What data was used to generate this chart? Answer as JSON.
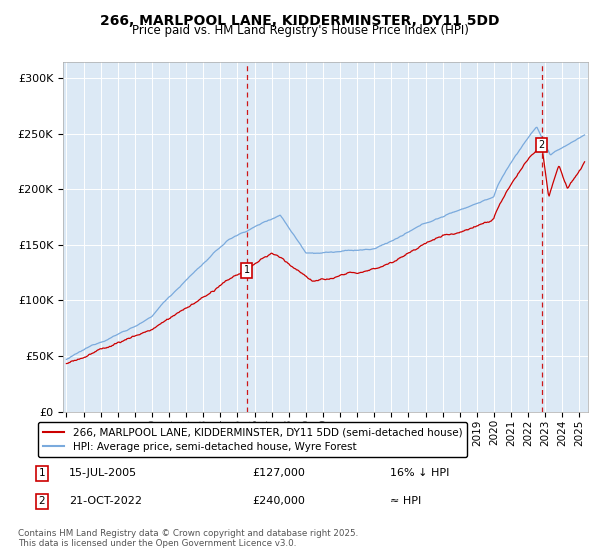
{
  "title1": "266, MARLPOOL LANE, KIDDERMINSTER, DY11 5DD",
  "title2": "Price paid vs. HM Land Registry's House Price Index (HPI)",
  "bg_color": "#dce9f5",
  "ylabel_ticks": [
    "£0",
    "£50K",
    "£100K",
    "£150K",
    "£200K",
    "£250K",
    "£300K"
  ],
  "ytick_vals": [
    0,
    50000,
    100000,
    150000,
    200000,
    250000,
    300000
  ],
  "ylim": [
    0,
    315000
  ],
  "xlim_start": 1994.8,
  "xlim_end": 2025.5,
  "xticks": [
    1995,
    1996,
    1997,
    1998,
    1999,
    2000,
    2001,
    2002,
    2003,
    2004,
    2005,
    2006,
    2007,
    2008,
    2009,
    2010,
    2011,
    2012,
    2013,
    2014,
    2015,
    2016,
    2017,
    2018,
    2019,
    2020,
    2021,
    2022,
    2023,
    2024,
    2025
  ],
  "sale1_x": 2005.54,
  "sale1_y": 127000,
  "sale1_label": "1",
  "sale2_x": 2022.8,
  "sale2_y": 240000,
  "sale2_label": "2",
  "legend_line1": "266, MARLPOOL LANE, KIDDERMINSTER, DY11 5DD (semi-detached house)",
  "legend_line2": "HPI: Average price, semi-detached house, Wyre Forest",
  "footer": "Contains HM Land Registry data © Crown copyright and database right 2025.\nThis data is licensed under the Open Government Licence v3.0.",
  "line_color_red": "#cc0000",
  "line_color_blue": "#7aaadd",
  "grid_color": "#ffffff",
  "dashed_line_color": "#cc0000"
}
